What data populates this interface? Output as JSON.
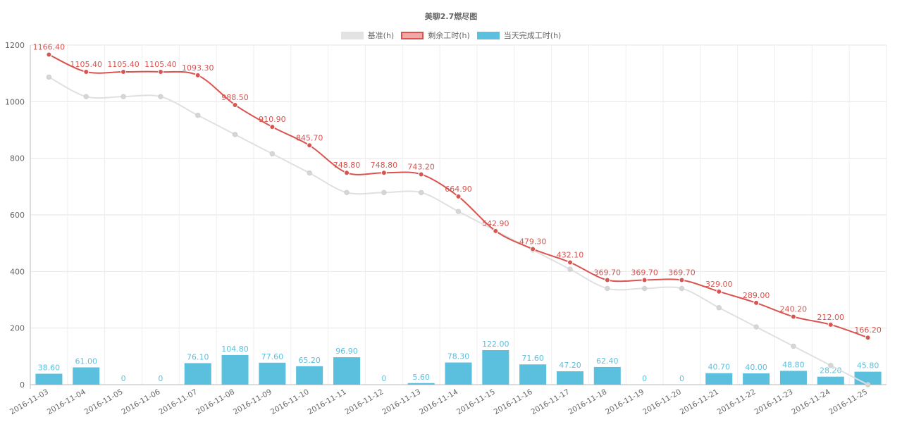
{
  "chart_data": {
    "type": "bar+line",
    "title": "美聊2.7燃尽图",
    "categories": [
      "2016-11-03",
      "2016-11-04",
      "2016-11-05",
      "2016-11-06",
      "2016-11-07",
      "2016-11-08",
      "2016-11-09",
      "2016-11-10",
      "2016-11-11",
      "2016-11-12",
      "2016-11-13",
      "2016-11-14",
      "2016-11-15",
      "2016-11-16",
      "2016-11-17",
      "2016-11-18",
      "2016-11-19",
      "2016-11-20",
      "2016-11-21",
      "2016-11-22",
      "2016-11-23",
      "2016-11-24",
      "2016-11-25"
    ],
    "ylim": [
      0,
      1200
    ],
    "yticks": [
      0,
      200,
      400,
      600,
      800,
      1000,
      1200
    ],
    "ytick_labels": [
      "0",
      "200",
      "400",
      "600",
      "800",
      "1000",
      "1200"
    ],
    "series": [
      {
        "name": "基准(h)",
        "type": "line",
        "color": "#e0e0e0",
        "values": [
          1087,
          1018,
          1018,
          1018,
          952,
          884,
          816,
          748,
          679,
          679,
          679,
          612,
          544,
          476,
          408,
          340,
          340,
          340,
          272,
          204,
          136,
          68,
          0
        ]
      },
      {
        "name": "剩余工时(h)",
        "type": "line",
        "color": "#d9534f",
        "fill": "#f0a9a7",
        "values": [
          1166.4,
          1105.4,
          1105.4,
          1105.4,
          1093.3,
          988.5,
          910.9,
          845.7,
          748.8,
          748.8,
          743.2,
          664.9,
          542.9,
          479.3,
          432.1,
          369.7,
          369.7,
          369.7,
          329.0,
          289.0,
          240.2,
          212.0,
          166.2
        ],
        "labels": [
          "1166.40",
          "1105.40",
          "1105.40",
          "1105.40",
          "1093.30",
          "988.50",
          "910.90",
          "845.70",
          "748.80",
          "748.80",
          "743.20",
          "664.90",
          "542.90",
          "479.30",
          "432.10",
          "369.70",
          "369.70",
          "369.70",
          "329.00",
          "289.00",
          "240.20",
          "212.00",
          "166.20"
        ]
      },
      {
        "name": "当天完成工时(h)",
        "type": "bar",
        "color": "#5bc0de",
        "values": [
          38.6,
          61.0,
          0,
          0,
          76.1,
          104.8,
          77.6,
          65.2,
          96.9,
          0,
          5.6,
          78.3,
          122.0,
          71.6,
          47.2,
          62.4,
          0,
          0,
          40.7,
          40.0,
          48.8,
          28.2,
          45.8
        ],
        "labels": [
          "38.60",
          "61.00",
          "0",
          "0",
          "76.10",
          "104.80",
          "77.60",
          "65.20",
          "96.90",
          "0",
          "5.60",
          "78.30",
          "122.00",
          "71.60",
          "47.20",
          "62.40",
          "0",
          "0",
          "40.70",
          "40.00",
          "48.80",
          "28.20",
          "45.80"
        ]
      }
    ]
  }
}
